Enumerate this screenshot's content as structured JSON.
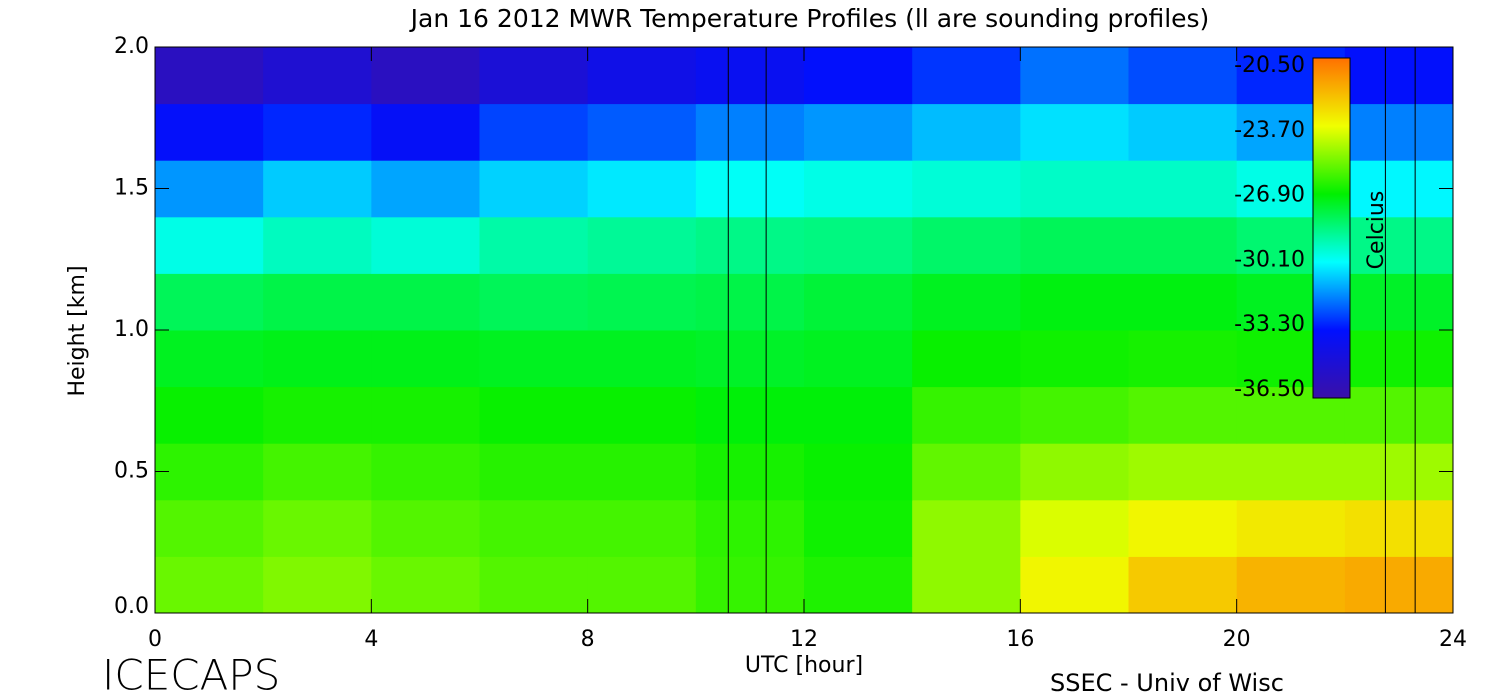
{
  "chart_data": {
    "type": "heatmap",
    "title": "Jan 16 2012 MWR Temperature Profiles (ll are sounding profiles)",
    "xlabel": "UTC [hour]",
    "ylabel": "Height [km]",
    "footer_left": "ICECAPS",
    "footer_right": "SSEC - Univ of Wisc",
    "colorbar_label": "Celcius",
    "xlim": [
      0,
      24
    ],
    "xticks": [
      0,
      4,
      8,
      12,
      16,
      20,
      24
    ],
    "ylim": [
      0,
      2.0
    ],
    "yticks": [
      {
        "value": 0,
        "label": "0.0"
      },
      0.5,
      {
        "value": 1,
        "label": "1.0"
      },
      1.5,
      {
        "value": 2,
        "label": "2.0"
      }
    ],
    "clim": [
      -36.5,
      -20.5
    ],
    "cticks": [
      {
        "value": -20.5,
        "label": "-20.50"
      },
      {
        "value": -23.7,
        "label": "-23.70"
      },
      {
        "value": -26.9,
        "label": "-26.90"
      },
      {
        "value": -30.1,
        "label": "-30.10"
      },
      {
        "value": -33.3,
        "label": "-33.30"
      },
      {
        "value": -36.5,
        "label": "-36.50"
      }
    ],
    "colors": [
      "#3a10a8",
      "#0010ff",
      "#00ffff",
      "#00f000",
      "#f0ff00",
      "#ff7000"
    ],
    "sounding_times": [
      10.6,
      11.3,
      22.75,
      23.3
    ],
    "x": [
      1,
      3,
      5,
      7,
      9,
      11,
      13,
      15,
      17,
      19,
      21,
      23
    ],
    "y": [
      0.1,
      0.3,
      0.5,
      0.7,
      0.9,
      1.1,
      1.3,
      1.5,
      1.7,
      1.9
    ],
    "z": [
      [
        -25.5,
        -25.2,
        -25.5,
        -25.8,
        -25.8,
        -26.2,
        -26.5,
        -25,
        -23.5,
        -22.5,
        -22,
        -21.8
      ],
      [
        -25.8,
        -25.5,
        -25.8,
        -26,
        -26,
        -26.3,
        -26.7,
        -25,
        -24,
        -23.5,
        -23.2,
        -23
      ],
      [
        -26.3,
        -26,
        -26.2,
        -26.4,
        -26.4,
        -26.6,
        -26.8,
        -25.6,
        -25,
        -24.8,
        -24.8,
        -24.8
      ],
      [
        -26.8,
        -26.6,
        -26.6,
        -26.8,
        -26.8,
        -27,
        -27,
        -26.2,
        -26,
        -25.8,
        -25.8,
        -25.8
      ],
      [
        -27.3,
        -27.2,
        -27.2,
        -27.3,
        -27.3,
        -27.4,
        -27.3,
        -26.8,
        -26.7,
        -26.6,
        -26.7,
        -26.7
      ],
      [
        -28,
        -27.8,
        -27.8,
        -28,
        -27.9,
        -27.8,
        -27.6,
        -27.3,
        -27.1,
        -27.1,
        -27.3,
        -27.4
      ],
      [
        -29.8,
        -29.3,
        -29.6,
        -29,
        -28.8,
        -28.6,
        -28.5,
        -28.2,
        -28,
        -28,
        -28.3,
        -28.6
      ],
      [
        -31.5,
        -30.8,
        -31.3,
        -30.7,
        -30.4,
        -30,
        -29.8,
        -29.6,
        -29.4,
        -29.4,
        -29.8,
        -30.2
      ],
      [
        -33.5,
        -33,
        -33.6,
        -32.6,
        -32.3,
        -31.8,
        -31.5,
        -31,
        -30.5,
        -30.8,
        -31.3,
        -31.8
      ],
      [
        -35.6,
        -35,
        -35.6,
        -34.8,
        -34.2,
        -33.8,
        -33.4,
        -32.8,
        -32,
        -32.5,
        -33,
        -33.4
      ]
    ]
  }
}
